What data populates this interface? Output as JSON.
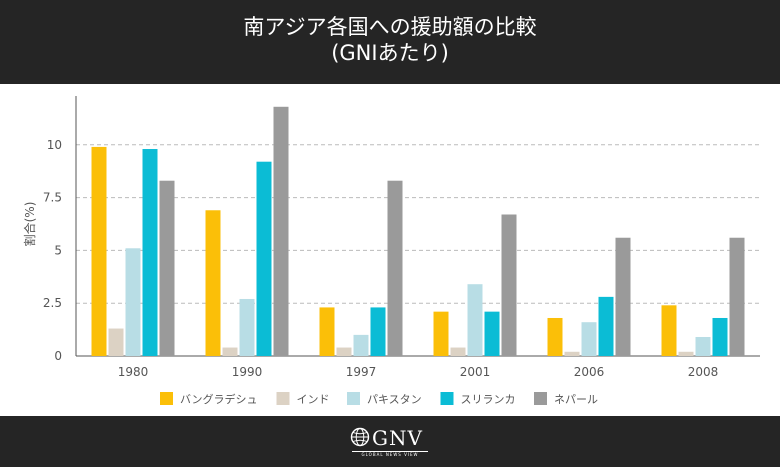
{
  "header": {
    "title_line1": "南アジア各国への援助額の比較",
    "title_line2": "(GNIあたり)"
  },
  "chart_data": {
    "type": "bar",
    "title": "南アジア各国への援助額の比較 (GNIあたり)",
    "xlabel": "",
    "ylabel": "割合(%)",
    "ylim": [
      0,
      12.5
    ],
    "yticks": [
      "0",
      "2.5",
      "5",
      "7.5",
      "10"
    ],
    "grid": true,
    "legend_position": "bottom",
    "categories": [
      "1980",
      "1990",
      "1997",
      "2001",
      "2006",
      "2008"
    ],
    "series": [
      {
        "name": "バングラデシュ",
        "color": "#fbbf08",
        "values": [
          9.9,
          6.9,
          2.3,
          2.1,
          1.8,
          2.4
        ]
      },
      {
        "name": "インド",
        "color": "#dcd2c4",
        "values": [
          1.3,
          0.4,
          0.4,
          0.4,
          0.2,
          0.2
        ]
      },
      {
        "name": "パキスタン",
        "color": "#b8dde5",
        "values": [
          5.1,
          2.7,
          1.0,
          3.4,
          1.6,
          0.9
        ]
      },
      {
        "name": "スリランカ",
        "color": "#0bbcd5",
        "values": [
          9.8,
          9.2,
          2.3,
          2.1,
          2.8,
          1.8
        ]
      },
      {
        "name": "ネパール",
        "color": "#9a9a9a",
        "values": [
          8.3,
          11.8,
          8.3,
          6.7,
          5.6,
          5.6
        ]
      }
    ]
  },
  "footer": {
    "logo_text": "GNV",
    "logo_subtext": "GLOBAL NEWS VIEW"
  }
}
